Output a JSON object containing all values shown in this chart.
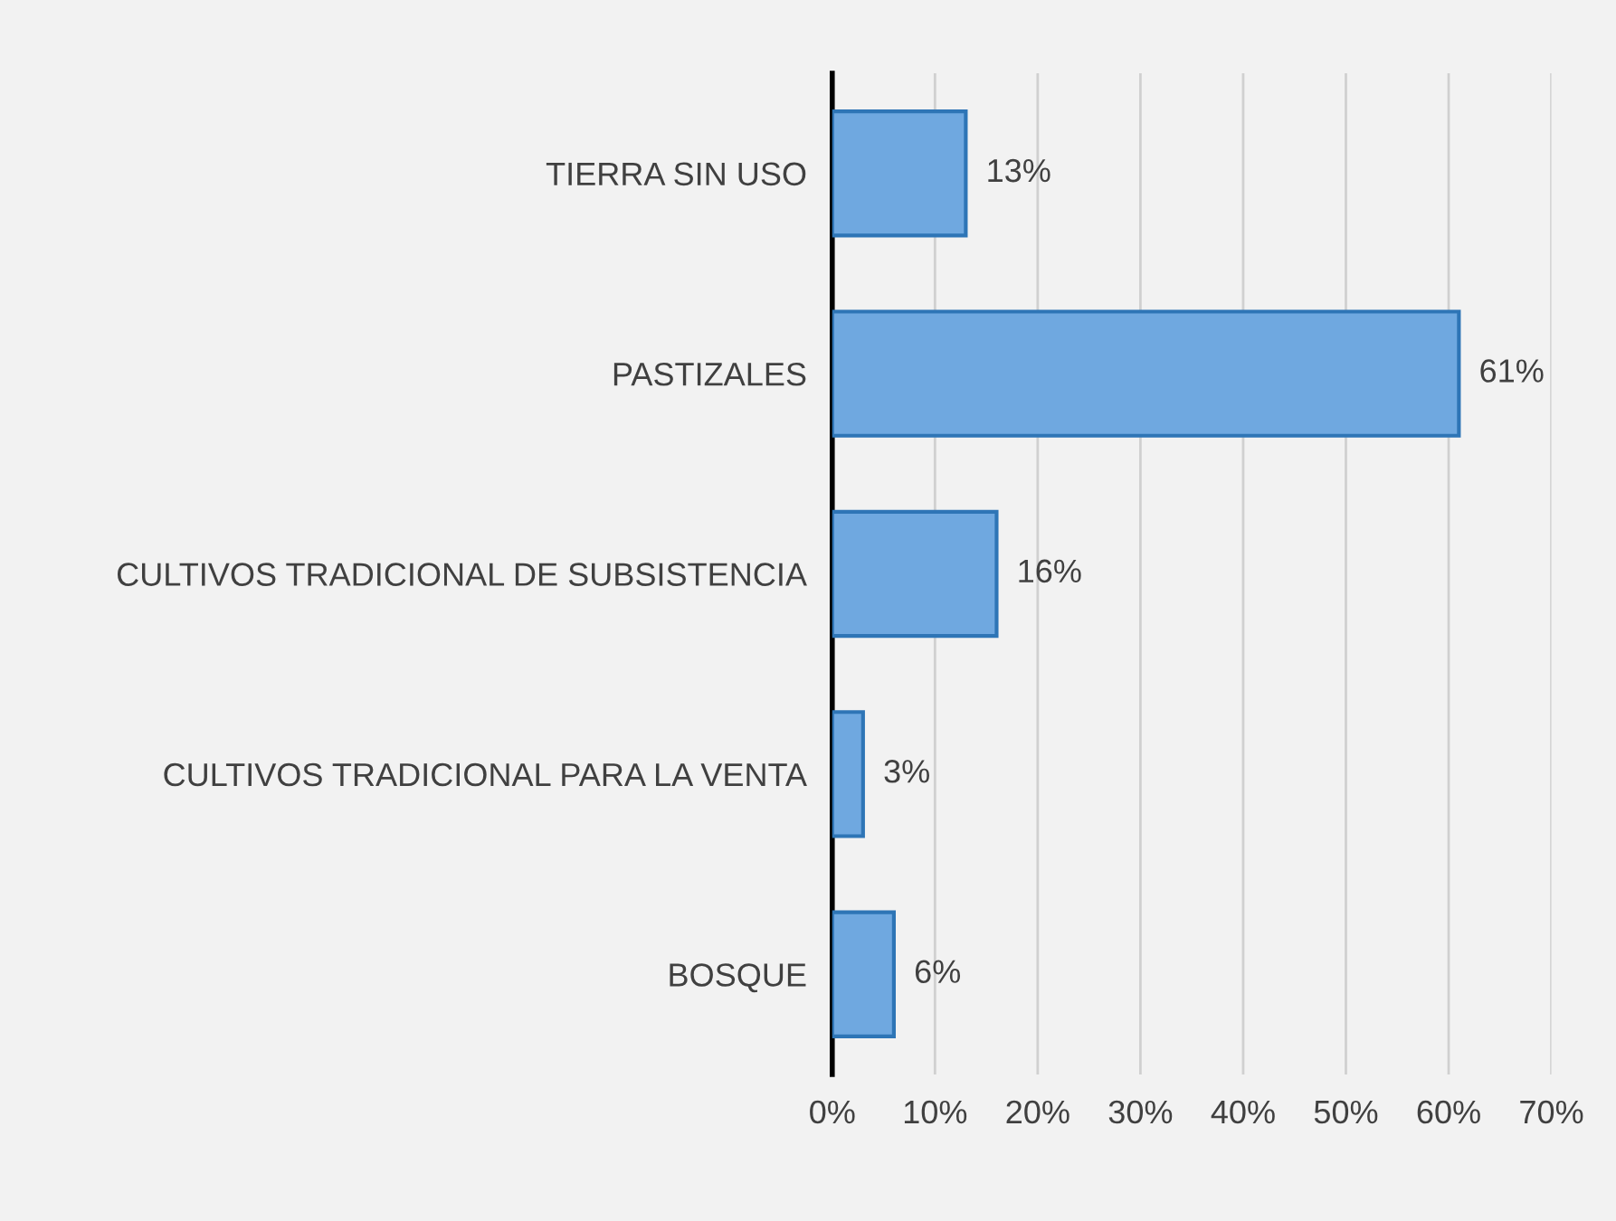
{
  "chart_data": {
    "type": "bar",
    "orientation": "horizontal",
    "categories": [
      "TIERRA SIN USO",
      "PASTIZALES",
      "CULTIVOS TRADICIONAL DE SUBSISTENCIA",
      "CULTIVOS TRADICIONAL PARA LA VENTA",
      "BOSQUE"
    ],
    "values": [
      13,
      61,
      16,
      3,
      6
    ],
    "value_labels": [
      "13%",
      "61%",
      "16%",
      "3%",
      "6%"
    ],
    "color": "#6fa8e0",
    "xlim": [
      0,
      70
    ],
    "xticks": [
      {
        "value": 0,
        "label": "0%"
      },
      {
        "value": 10,
        "label": "10%"
      },
      {
        "value": 20,
        "label": "20%"
      },
      {
        "value": 30,
        "label": "30%"
      },
      {
        "value": 40,
        "label": "40%"
      },
      {
        "value": 50,
        "label": "50%"
      },
      {
        "value": 60,
        "label": "60%"
      },
      {
        "value": 70,
        "label": "70%"
      }
    ],
    "grid": "x"
  }
}
